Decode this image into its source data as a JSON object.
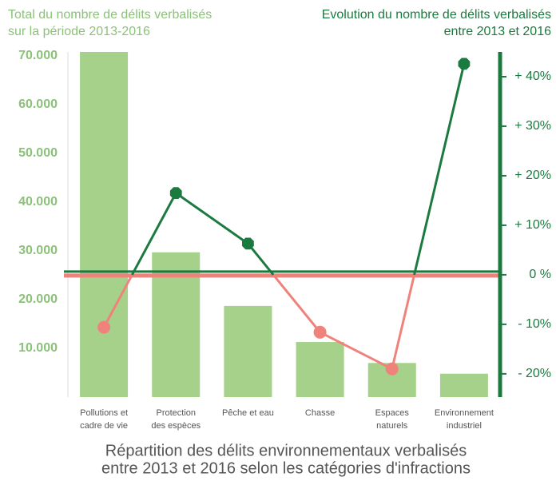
{
  "chart_data": {
    "type": "bar_line",
    "title": [
      "Total du nombre de délits verbalisés",
      "sur la période 2013-2016"
    ],
    "title_y2": [
      "Evolution du nombre de délits verbalisés",
      "entre 2013 et 2016"
    ],
    "caption": [
      "Répartition des délits environnementaux verbalisés",
      "entre 2013 et 2016 selon les catégories d'infractions"
    ],
    "categories": [
      [
        "Pollutions et",
        "cadre de vie"
      ],
      [
        "Protection",
        "des espèces"
      ],
      [
        "Pêche et eau"
      ],
      [
        "Chasse"
      ],
      [
        "Espaces",
        "naturels"
      ],
      [
        "Environnement",
        "industriel"
      ]
    ],
    "values": [
      70800,
      29700,
      18700,
      11300,
      7000,
      4800
    ],
    "color": "#a5d18a",
    "values_y2": [
      -10.6,
      16.5,
      6.3,
      -11.6,
      -19,
      42.6
    ],
    "positive_color": "#1b7a3f",
    "negative_color": "#f0827c",
    "ylim": [
      0,
      70800
    ],
    "yticks": [
      {
        "value": 10000,
        "label": "10.000"
      },
      {
        "value": 20000,
        "label": "20.000"
      },
      {
        "value": 30000,
        "label": "30.000"
      },
      {
        "value": 40000,
        "label": "40.000"
      },
      {
        "value": 50000,
        "label": "50.000"
      },
      {
        "value": 60000,
        "label": "60.000"
      },
      {
        "value": 70000,
        "label": "70.000"
      }
    ],
    "y2lim": [
      -24.7,
      45
    ],
    "y2ticks": [
      {
        "value": -20,
        "label": "- 20%"
      },
      {
        "value": -10,
        "label": "- 10%"
      },
      {
        "value": 0,
        "label": "0 %"
      },
      {
        "value": 10,
        "label": "+ 10%"
      },
      {
        "value": 20,
        "label": "+ 20%"
      },
      {
        "value": 30,
        "label": "+ 30%"
      },
      {
        "value": 40,
        "label": "+ 40%"
      }
    ]
  }
}
